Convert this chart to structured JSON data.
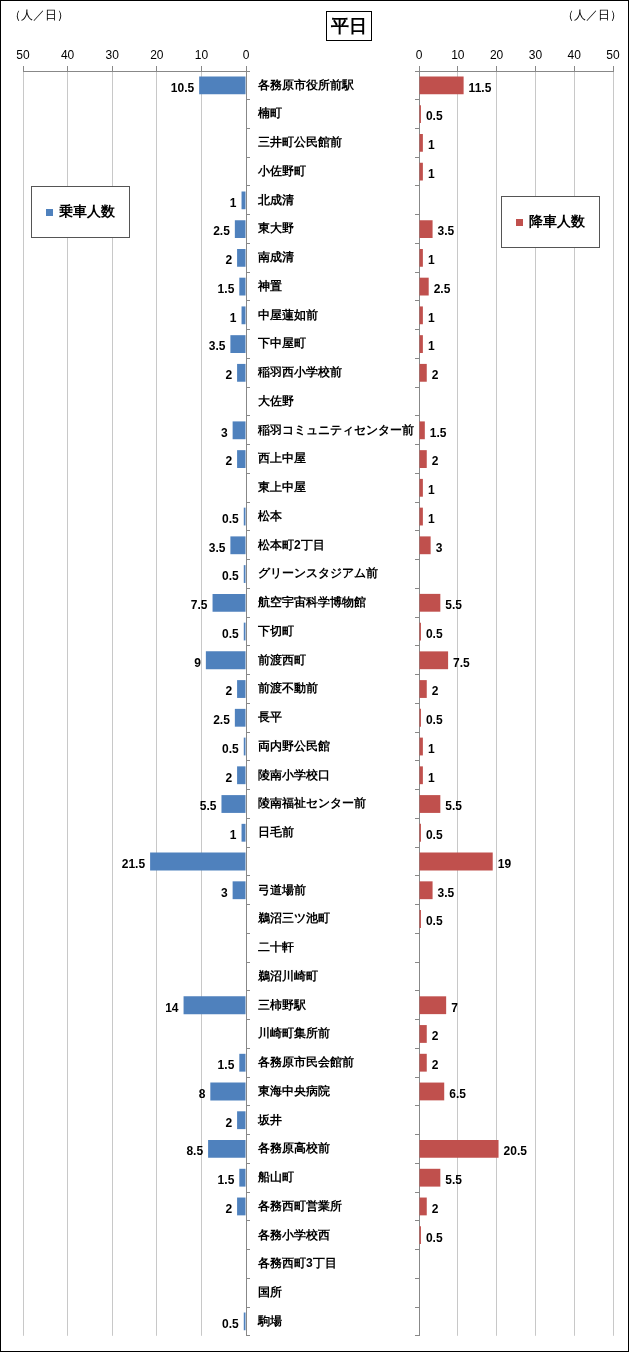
{
  "chart_data": [
    {
      "type": "bar",
      "orientation": "horizontal",
      "title": "平日",
      "xlabel": "（人／日）",
      "categories": [
        "各務原市役所前駅",
        "楠町",
        "三井町公民館前",
        "小佐野町",
        "北成清",
        "東大野",
        "南成清",
        "神置",
        "中屋蓮如前",
        "下中屋町",
        "稲羽西小学校前",
        "大佐野",
        "稲羽コミュニティセンター前",
        "西上中屋",
        "東上中屋",
        "松本",
        "松本町2丁目",
        "グリーンスタジアム前",
        "航空宇宙科学博物館",
        "下切町",
        "前渡西町",
        "前渡不動前",
        "長平",
        "両内野公民館",
        "陵南小学校口",
        "陵南福祉センター前",
        "日毛前",
        null,
        "弓道場前",
        "鵜沼三ツ池町",
        "二十軒",
        "鵜沼川崎町",
        "三柿野駅",
        "川崎町集所前",
        "各務原市民会館前",
        "東海中央病院",
        "坂井",
        "各務原高校前",
        "船山町",
        "各務西町営業所",
        "各務小学校西",
        "各務西町3丁目",
        "国所",
        "駒場"
      ],
      "series": [
        {
          "name": "乗車人数",
          "color": "#4f81bd",
          "values": [
            10.5,
            null,
            null,
            null,
            1,
            2.5,
            2,
            1.5,
            1,
            3.5,
            2,
            null,
            3,
            2,
            null,
            0.5,
            3.5,
            0.5,
            7.5,
            0.5,
            9,
            2,
            2.5,
            0.5,
            2,
            5.5,
            1,
            21.5,
            3,
            null,
            null,
            null,
            14,
            null,
            1.5,
            8,
            2,
            8.5,
            1.5,
            2,
            null,
            null,
            null,
            0.5
          ]
        }
      ],
      "xlim": [
        50,
        0
      ],
      "xticks": [
        50,
        40,
        30,
        20,
        10,
        0
      ],
      "grid": "x",
      "legend": "top left",
      "data_labels": true
    },
    {
      "type": "bar",
      "orientation": "horizontal",
      "xlabel": "（人／日）",
      "categories": [
        null,
        null,
        null,
        null,
        null,
        null,
        null,
        null,
        null,
        null,
        null,
        null,
        null,
        null,
        null,
        null,
        null,
        null,
        null,
        null,
        null,
        null,
        null,
        null,
        null,
        null,
        null,
        null,
        null,
        null,
        null,
        null,
        null,
        null,
        null,
        null,
        null,
        null,
        null,
        null,
        null,
        null,
        null,
        null
      ],
      "series": [
        {
          "name": "降車人数",
          "color": "#c0504d",
          "values": [
            11.5,
            0.5,
            1,
            1,
            null,
            3.5,
            1,
            2.5,
            1,
            1,
            2,
            null,
            1.5,
            2,
            1,
            1,
            3,
            null,
            5.5,
            0.5,
            7.5,
            2,
            0.5,
            1,
            1,
            5.5,
            0.5,
            19,
            3.5,
            0.5,
            null,
            null,
            7,
            2,
            2,
            6.5,
            null,
            20.5,
            5.5,
            2,
            0.5,
            null,
            null,
            null
          ]
        }
      ],
      "xlim": [
        0,
        50
      ],
      "xticks": [
        0,
        10,
        20,
        30,
        40,
        50
      ],
      "grid": "x",
      "legend": "top right",
      "data_labels": true
    }
  ]
}
